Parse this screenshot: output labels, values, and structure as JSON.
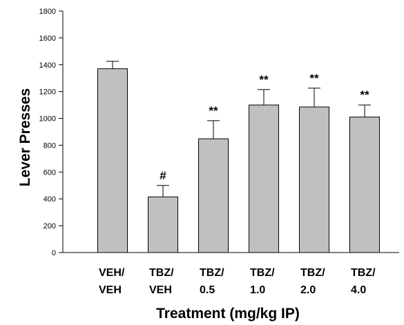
{
  "chart_data": {
    "type": "bar",
    "categories": [
      [
        "VEH/",
        "VEH"
      ],
      [
        "TBZ/",
        "VEH"
      ],
      [
        "TBZ/",
        "0.5"
      ],
      [
        "TBZ/",
        "1.0"
      ],
      [
        "TBZ/",
        "2.0"
      ],
      [
        "TBZ/",
        "4.0"
      ]
    ],
    "values": [
      1370,
      415,
      848,
      1100,
      1085,
      1010
    ],
    "errors": [
      55,
      85,
      135,
      115,
      140,
      90
    ],
    "annotations": [
      "",
      "#",
      "**",
      "**",
      "**",
      "**"
    ],
    "xlabel": "Treatment (mg/kg IP)",
    "ylabel": "Lever Presses",
    "ylim": [
      0,
      1800
    ],
    "yticks": [
      0,
      200,
      400,
      600,
      800,
      1000,
      1200,
      1400,
      1600,
      1800
    ],
    "grid": false,
    "colors": {
      "bar_fill": "#c0c0c0",
      "bar_stroke": "#000000"
    }
  }
}
